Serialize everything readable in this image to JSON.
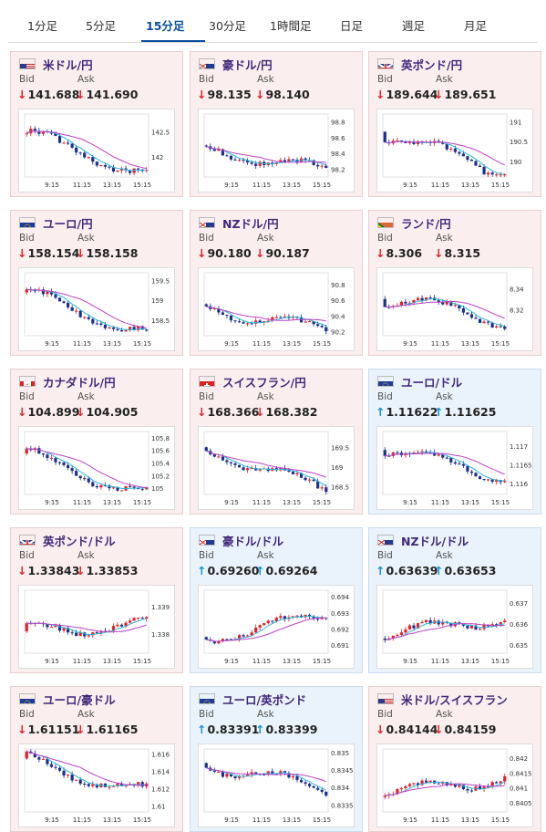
{
  "tabs": [
    {
      "label": "1分足"
    },
    {
      "label": "5分足"
    },
    {
      "label": "15分足",
      "active": true
    },
    {
      "label": "30分足"
    },
    {
      "label": "1時間足"
    },
    {
      "label": "日足"
    },
    {
      "label": "週足"
    },
    {
      "label": "月足"
    }
  ],
  "labels": {
    "bid": "Bid",
    "ask": "Ask"
  },
  "colors": {
    "down_arrow": "#e0232a",
    "up_arrow": "#1493d6",
    "candle_up": "#e0232a",
    "candle_down": "#1c2f8c",
    "ma_short": "#2bb7d8",
    "ma_long": "#c040c8"
  },
  "x_ticks": [
    "9:15",
    "11:15",
    "13:15",
    "15:15"
  ],
  "pairs": [
    {
      "name": "米ドル/円",
      "flag": "us",
      "direction": "down",
      "bid": "141.688",
      "ask": "141.690",
      "chart_data": {
        "type": "candlestick",
        "y_ticks": [
          "142.5",
          "142"
        ],
        "y_tick_values": [
          142.5,
          142.0
        ],
        "ylim": [
          141.6,
          142.85
        ],
        "start": 142.45,
        "end": 141.68
      }
    },
    {
      "name": "豪ドル/円",
      "flag": "au",
      "direction": "down",
      "bid": "98.135",
      "ask": "98.140",
      "chart_data": {
        "type": "candlestick",
        "y_ticks": [
          "98.8",
          "98.6",
          "98.4",
          "98.2"
        ],
        "y_tick_values": [
          98.8,
          98.6,
          98.4,
          98.2
        ],
        "ylim": [
          98.1,
          98.9
        ],
        "start": 98.5,
        "end": 98.14
      }
    },
    {
      "name": "英ポンド/円",
      "flag": "gb",
      "direction": "down",
      "bid": "189.644",
      "ask": "189.651",
      "chart_data": {
        "type": "candlestick",
        "y_ticks": [
          "191",
          "190.5",
          "190"
        ],
        "y_tick_values": [
          191,
          190.5,
          190
        ],
        "ylim": [
          189.6,
          191.2
        ],
        "start": 190.75,
        "end": 189.65
      }
    },
    {
      "name": "ユーロ/円",
      "flag": "eu",
      "direction": "down",
      "bid": "158.154",
      "ask": "158.158",
      "chart_data": {
        "type": "candlestick",
        "y_ticks": [
          "159.5",
          "159",
          "158.5"
        ],
        "y_tick_values": [
          159.5,
          159,
          158.5
        ],
        "ylim": [
          158.1,
          159.7
        ],
        "start": 159.2,
        "end": 158.16
      }
    },
    {
      "name": "NZドル/円",
      "flag": "nz",
      "direction": "down",
      "bid": "90.180",
      "ask": "90.187",
      "chart_data": {
        "type": "candlestick",
        "y_ticks": [
          "90.8",
          "90.6",
          "90.4",
          "90.2"
        ],
        "y_tick_values": [
          90.8,
          90.6,
          90.4,
          90.2
        ],
        "ylim": [
          90.15,
          90.95
        ],
        "start": 90.55,
        "end": 90.18
      }
    },
    {
      "name": "ランド/円",
      "flag": "za",
      "direction": "down",
      "bid": "8.306",
      "ask": "8.315",
      "chart_data": {
        "type": "candlestick",
        "y_ticks": [
          "8.34",
          "8.32"
        ],
        "y_tick_values": [
          8.34,
          8.32
        ],
        "ylim": [
          8.295,
          8.355
        ],
        "start": 8.33,
        "end": 8.31
      }
    },
    {
      "name": "カナダドル/円",
      "flag": "ca",
      "direction": "down",
      "bid": "104.899",
      "ask": "104.905",
      "chart_data": {
        "type": "candlestick",
        "y_ticks": [
          "105.8",
          "105.6",
          "105.4",
          "105.2",
          "105"
        ],
        "y_tick_values": [
          105.8,
          105.6,
          105.4,
          105.2,
          105.0
        ],
        "ylim": [
          104.9,
          105.9
        ],
        "start": 105.55,
        "end": 104.9
      }
    },
    {
      "name": "スイスフラン/円",
      "flag": "ch",
      "direction": "down",
      "bid": "168.366",
      "ask": "168.382",
      "chart_data": {
        "type": "candlestick",
        "y_ticks": [
          "169.5",
          "169",
          "168.5"
        ],
        "y_tick_values": [
          169.5,
          169,
          168.5
        ],
        "ylim": [
          168.3,
          169.9
        ],
        "start": 169.5,
        "end": 168.37
      }
    },
    {
      "name": "ユーロ/ドル",
      "flag": "eu",
      "direction": "up",
      "bid": "1.11622",
      "ask": "1.11625",
      "chart_data": {
        "type": "candlestick",
        "y_ticks": [
          "1.117",
          "1.1165",
          "1.116"
        ],
        "y_tick_values": [
          1.117,
          1.1165,
          1.116
        ],
        "ylim": [
          1.1157,
          1.1174
        ],
        "start": 1.1169,
        "end": 1.1162
      }
    },
    {
      "name": "英ポンド/ドル",
      "flag": "gb",
      "direction": "down",
      "bid": "1.33843",
      "ask": "1.33853",
      "chart_data": {
        "type": "candlestick",
        "y_ticks": [
          "1.339",
          "1.338"
        ],
        "y_tick_values": [
          1.339,
          1.338
        ],
        "ylim": [
          1.3373,
          1.3396
        ],
        "start": 1.3381,
        "end": 1.3384
      }
    },
    {
      "name": "豪ドル/ドル",
      "flag": "au",
      "direction": "up",
      "bid": "0.69260",
      "ask": "0.69264",
      "chart_data": {
        "type": "candlestick",
        "y_ticks": [
          "0.694",
          "0.693",
          "0.692",
          "0.691"
        ],
        "y_tick_values": [
          0.694,
          0.693,
          0.692,
          0.691
        ],
        "ylim": [
          0.6905,
          0.6944
        ],
        "start": 0.6915,
        "end": 0.6927
      }
    },
    {
      "name": "NZドル/ドル",
      "flag": "nz",
      "direction": "up",
      "bid": "0.63639",
      "ask": "0.63653",
      "chart_data": {
        "type": "candlestick",
        "y_ticks": [
          "0.637",
          "0.636",
          "0.635"
        ],
        "y_tick_values": [
          0.637,
          0.636,
          0.635
        ],
        "ylim": [
          0.6346,
          0.6376
        ],
        "start": 0.6353,
        "end": 0.6364
      }
    },
    {
      "name": "ユーロ/豪ドル",
      "flag": "eu",
      "direction": "down",
      "bid": "1.61151",
      "ask": "1.61165",
      "chart_data": {
        "type": "candlestick",
        "y_ticks": [
          "1.616",
          "1.614",
          "1.612",
          "1.61"
        ],
        "y_tick_values": [
          1.616,
          1.614,
          1.612,
          1.61
        ],
        "ylim": [
          1.6093,
          1.6166
        ],
        "start": 1.6155,
        "end": 1.6115
      }
    },
    {
      "name": "ユーロ/英ポンド",
      "flag": "eu",
      "direction": "up",
      "bid": "0.83391",
      "ask": "0.83399",
      "chart_data": {
        "type": "candlestick",
        "y_ticks": [
          "0.835",
          "0.8345",
          "0.834",
          "0.8335"
        ],
        "y_tick_values": [
          0.835,
          0.8345,
          0.834,
          0.8335
        ],
        "ylim": [
          0.8333,
          0.8351
        ],
        "start": 0.8347,
        "end": 0.8339
      }
    },
    {
      "name": "米ドル/スイスフラン",
      "flag": "us",
      "direction": "down",
      "bid": "0.84144",
      "ask": "0.84159",
      "chart_data": {
        "type": "candlestick",
        "y_ticks": [
          "0.842",
          "0.8415",
          "0.841",
          "0.8405"
        ],
        "y_tick_values": [
          0.842,
          0.8415,
          0.841,
          0.8405
        ],
        "ylim": [
          0.8402,
          0.8423
        ],
        "start": 0.8407,
        "end": 0.8414
      }
    }
  ]
}
